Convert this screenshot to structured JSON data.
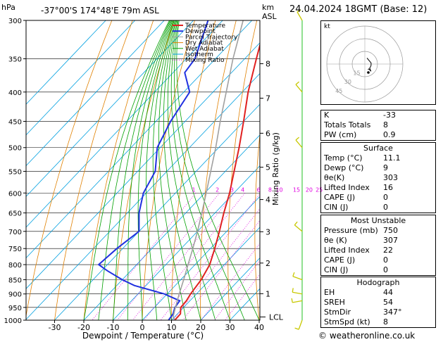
{
  "header": {
    "location": "-37°00'S  174°48'E  79m  ASL",
    "datetime": "24.04.2024  18GMT  (Base: 12)",
    "hpa_label": "hPa",
    "km_label": "km",
    "asl_label": "ASL",
    "mixing_ratio_label": "Mixing Ratio (g/kg)",
    "lcl_label": "LCL"
  },
  "colors": {
    "temperature": "#e02020",
    "dewpoint": "#2030e0",
    "parcel": "#a0a0a0",
    "dry_adiabat": "#e08000",
    "wet_adiabat": "#00a000",
    "isotherm": "#00a0e0",
    "mixing_ratio": "#e000e0",
    "wind": "#c8c800"
  },
  "legend": [
    "Temperature",
    "Dewpoint",
    "Parcel Trajectory",
    "Dry Adiabat",
    "Wet Adiabat",
    "Isotherm",
    "Mixing Ratio"
  ],
  "chart_data": {
    "type": "line",
    "xlabel": "Dewpoint / Temperature (°C)",
    "xlim": [
      -35,
      40
    ],
    "pressure_ticks": [
      300,
      350,
      400,
      450,
      500,
      550,
      600,
      650,
      700,
      750,
      800,
      850,
      900,
      950,
      1000
    ],
    "x_ticks": [
      -30,
      -20,
      -10,
      0,
      10,
      20,
      30,
      40
    ],
    "km_ticks": [
      {
        "label": "8",
        "p": 357
      },
      {
        "label": "7",
        "p": 410
      },
      {
        "label": "6",
        "p": 472
      },
      {
        "label": "5",
        "p": 541
      },
      {
        "label": "4",
        "p": 616
      },
      {
        "label": "3",
        "p": 701
      },
      {
        "label": "2",
        "p": 795
      },
      {
        "label": "1",
        "p": 899
      }
    ],
    "lcl_p": 987,
    "mixing_ratio_labels": [
      "1",
      "2",
      "3",
      "4",
      "6",
      "8",
      "10",
      "15",
      "20",
      "25"
    ],
    "mixing_ratio_values": [
      1,
      2,
      3,
      4,
      6,
      8,
      10,
      15,
      20,
      25
    ],
    "series": [
      {
        "name": "Temperature",
        "p": [
          1000,
          975,
          950,
          925,
          900,
          850,
          800,
          750,
          700,
          650,
          600,
          550,
          500,
          450,
          400,
          350,
          300
        ],
        "t": [
          11.1,
          11,
          9,
          8.8,
          8,
          7,
          5,
          1.5,
          -2.5,
          -7,
          -11.5,
          -17,
          -23,
          -30,
          -38,
          -46,
          -55
        ]
      },
      {
        "name": "Dewpoint",
        "p": [
          1000,
          975,
          950,
          925,
          900,
          870,
          850,
          820,
          800,
          750,
          700,
          650,
          600,
          550,
          500,
          450,
          400,
          370,
          350,
          300
        ],
        "t": [
          9,
          8.5,
          7,
          6.5,
          -1,
          -14,
          -20,
          -28,
          -33,
          -32,
          -30,
          -36,
          -41,
          -44,
          -51,
          -55,
          -58,
          -66,
          -67,
          -75
        ]
      },
      {
        "name": "Parcel Trajectory",
        "p": [
          1000,
          987,
          950,
          900,
          850,
          800,
          750,
          700,
          650,
          600,
          550,
          500,
          450,
          400,
          350,
          300
        ],
        "t": [
          11.1,
          9.5,
          7.2,
          4.1,
          1,
          -2.4,
          -6,
          -10,
          -14.5,
          -19.5,
          -25,
          -31,
          -38,
          -45.5,
          -54,
          -63
        ]
      }
    ],
    "hodograph_ring_labels": [
      "15",
      "30",
      "45"
    ],
    "wind_barbs": [
      {
        "p": 1000,
        "dir": 200,
        "spd": 10
      },
      {
        "p": 925,
        "dir": 260,
        "spd": 10
      },
      {
        "p": 900,
        "dir": 280,
        "spd": 10
      },
      {
        "p": 850,
        "dir": 290,
        "spd": 10
      },
      {
        "p": 700,
        "dir": 310,
        "spd": 10
      },
      {
        "p": 500,
        "dir": 320,
        "spd": 15
      },
      {
        "p": 400,
        "dir": 320,
        "spd": 10
      },
      {
        "p": 300,
        "dir": 330,
        "spd": 10
      }
    ]
  },
  "indices": {
    "k_label": "K",
    "k": "-33",
    "tt_label": "Totals Totals",
    "tt": "8",
    "pw_label": "PW (cm)",
    "pw": "0.9"
  },
  "surface": {
    "title": "Surface",
    "temp_label": "Temp (°C)",
    "temp": "11.1",
    "dewp_label": "Dewp (°C)",
    "dewp": "9",
    "theta_label": "θe(K)",
    "theta": "303",
    "li_label": "Lifted Index",
    "li": "16",
    "cape_label": "CAPE (J)",
    "cape": "0",
    "cin_label": "CIN (J)",
    "cin": "0"
  },
  "most_unstable": {
    "title": "Most Unstable",
    "pres_label": "Pressure (mb)",
    "pres": "750",
    "theta_label": "θe (K)",
    "theta": "307",
    "li_label": "Lifted Index",
    "li": "22",
    "cape_label": "CAPE (J)",
    "cape": "0",
    "cin_label": "CIN (J)",
    "cin": "0"
  },
  "hodograph": {
    "title": "Hodograph",
    "kt_label": "kt",
    "eh_label": "EH",
    "eh": "44",
    "sreh_label": "SREH",
    "sreh": "54",
    "stmdir_label": "StmDir",
    "stmdir": "347°",
    "stmspd_label": "StmSpd (kt)",
    "stmspd": "8"
  },
  "footer": "© weatheronline.co.uk"
}
